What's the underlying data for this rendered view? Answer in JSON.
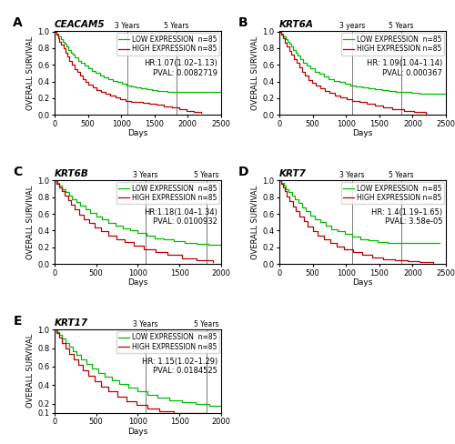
{
  "chart_data": [
    {
      "type": "step",
      "panel_label": "A",
      "title": "CEACAM5",
      "annotations": [
        "HR:1.07(1.02–1.13)",
        "PVAL: 0.0082719"
      ],
      "x_label": "Days",
      "y_label": "OVERALL SURVIVAL",
      "series": [
        {
          "name": "LOW EXPRESSION  n=85",
          "color": "#00bb00",
          "x": [
            0,
            30,
            60,
            90,
            120,
            150,
            180,
            210,
            240,
            270,
            300,
            350,
            400,
            450,
            500,
            560,
            620,
            680,
            740,
            800,
            870,
            940,
            1010,
            1080,
            1150,
            1220,
            1300,
            1380,
            1460,
            1540,
            1620,
            1700,
            1800,
            1900,
            2000,
            2100,
            2200,
            2300,
            2400,
            2500
          ],
          "values": [
            1.0,
            0.97,
            0.94,
            0.91,
            0.88,
            0.85,
            0.82,
            0.78,
            0.75,
            0.72,
            0.69,
            0.65,
            0.62,
            0.59,
            0.56,
            0.53,
            0.5,
            0.47,
            0.45,
            0.43,
            0.41,
            0.39,
            0.37,
            0.35,
            0.34,
            0.33,
            0.32,
            0.31,
            0.3,
            0.29,
            0.29,
            0.28,
            0.28,
            0.28,
            0.28,
            0.28,
            0.28,
            0.28,
            0.28,
            0.28
          ]
        },
        {
          "name": "HIGH EXPRESSION n=85",
          "color": "#bb0000",
          "x": [
            0,
            25,
            50,
            75,
            100,
            130,
            160,
            190,
            220,
            260,
            300,
            340,
            380,
            420,
            460,
            510,
            570,
            630,
            690,
            760,
            830,
            910,
            990,
            1070,
            1150,
            1230,
            1320,
            1420,
            1530,
            1640,
            1760,
            1870,
            1980,
            2090,
            2200
          ],
          "values": [
            1.0,
            0.96,
            0.92,
            0.88,
            0.84,
            0.8,
            0.75,
            0.7,
            0.65,
            0.6,
            0.55,
            0.51,
            0.47,
            0.43,
            0.39,
            0.36,
            0.33,
            0.3,
            0.27,
            0.25,
            0.23,
            0.21,
            0.19,
            0.17,
            0.16,
            0.15,
            0.14,
            0.13,
            0.12,
            0.1,
            0.09,
            0.07,
            0.05,
            0.03,
            0.02
          ]
        }
      ],
      "vlines": [
        {
          "x": 1095,
          "label": "3 Years",
          "color": "#777777"
        },
        {
          "x": 1825,
          "label": "5 Years",
          "color": "#777777"
        }
      ],
      "xlim": [
        0,
        2500
      ],
      "xticks": [
        0,
        500,
        1000,
        1500,
        2000,
        2500
      ],
      "ylim": [
        0,
        1.005
      ],
      "yticks": [
        {
          "value": 0,
          "label": "0.0"
        },
        0.2,
        0.4,
        0.6,
        0.8,
        1.0
      ],
      "legend": "upper right"
    },
    {
      "type": "step",
      "panel_label": "B",
      "title": "KRT6A",
      "annotations": [
        "HR: 1.09(1.04–1.14)",
        "PVAL: 0.000367"
      ],
      "x_label": "Days",
      "y_label": "OVERALL SURVIVAL",
      "series": [
        {
          "name": "LOW EXPRESSION  n=85",
          "color": "#00bb00",
          "x": [
            0,
            30,
            60,
            90,
            120,
            150,
            180,
            210,
            240,
            270,
            310,
            360,
            410,
            470,
            530,
            600,
            670,
            740,
            820,
            900,
            980,
            1060,
            1150,
            1240,
            1340,
            1440,
            1540,
            1640,
            1750,
            1860,
            1980,
            2100,
            2200,
            2300,
            2400,
            2500
          ],
          "values": [
            1.0,
            0.97,
            0.94,
            0.91,
            0.88,
            0.85,
            0.82,
            0.78,
            0.75,
            0.71,
            0.67,
            0.63,
            0.59,
            0.56,
            0.52,
            0.49,
            0.46,
            0.43,
            0.41,
            0.39,
            0.37,
            0.35,
            0.34,
            0.33,
            0.32,
            0.31,
            0.3,
            0.29,
            0.28,
            0.27,
            0.26,
            0.25,
            0.25,
            0.25,
            0.25,
            0.25
          ]
        },
        {
          "name": "HIGH EXPRESSION n=85",
          "color": "#bb0000",
          "x": [
            0,
            25,
            50,
            80,
            110,
            145,
            180,
            215,
            255,
            295,
            340,
            385,
            435,
            490,
            550,
            615,
            685,
            755,
            835,
            920,
            1005,
            1095,
            1200,
            1310,
            1430,
            1560,
            1700,
            1870,
            2020,
            2200
          ],
          "values": [
            1.0,
            0.96,
            0.92,
            0.87,
            0.82,
            0.77,
            0.72,
            0.67,
            0.62,
            0.57,
            0.52,
            0.47,
            0.42,
            0.38,
            0.35,
            0.32,
            0.29,
            0.26,
            0.23,
            0.21,
            0.19,
            0.17,
            0.15,
            0.13,
            0.11,
            0.09,
            0.07,
            0.05,
            0.03,
            0.01
          ]
        }
      ],
      "vlines": [
        {
          "x": 1095,
          "label": "3 years",
          "color": "#777777"
        },
        {
          "x": 1825,
          "label": "5 Years",
          "color": "#777777"
        }
      ],
      "xlim": [
        0,
        2500
      ],
      "xticks": [
        0,
        500,
        1000,
        1500,
        2000,
        2500
      ],
      "ylim": [
        0,
        1.005
      ],
      "yticks": [
        {
          "value": 0,
          "label": "0.0"
        },
        0.2,
        0.4,
        0.6,
        0.8,
        1.0
      ],
      "legend": "upper right"
    },
    {
      "type": "step",
      "panel_label": "C",
      "title": "KRT6B",
      "annotations": [
        "HR:1.18(1.04–1.34)",
        "PVAL: 0.0100932"
      ],
      "x_label": "Days",
      "y_label": "OVERALL SURVIVAL",
      "series": [
        {
          "name": "LOW EXPRESSION  n=85",
          "color": "#00bb00",
          "x": [
            0,
            30,
            60,
            90,
            130,
            170,
            210,
            260,
            310,
            370,
            430,
            500,
            570,
            650,
            730,
            820,
            910,
            1000,
            1100,
            1200,
            1310,
            1430,
            1560,
            1700,
            1850,
            2000
          ],
          "values": [
            1.0,
            0.97,
            0.94,
            0.9,
            0.86,
            0.82,
            0.78,
            0.74,
            0.7,
            0.65,
            0.61,
            0.57,
            0.53,
            0.49,
            0.46,
            0.43,
            0.4,
            0.37,
            0.34,
            0.31,
            0.29,
            0.27,
            0.25,
            0.24,
            0.23,
            0.23
          ]
        },
        {
          "name": "HIGH EXPRESSION n=85",
          "color": "#bb0000",
          "x": [
            0,
            25,
            55,
            85,
            120,
            160,
            200,
            245,
            295,
            350,
            410,
            480,
            560,
            645,
            740,
            840,
            950,
            1070,
            1210,
            1360,
            1530,
            1710,
            1900
          ],
          "values": [
            1.0,
            0.96,
            0.92,
            0.87,
            0.82,
            0.76,
            0.71,
            0.65,
            0.59,
            0.54,
            0.49,
            0.44,
            0.39,
            0.34,
            0.3,
            0.26,
            0.22,
            0.18,
            0.14,
            0.11,
            0.07,
            0.04,
            0.02
          ]
        }
      ],
      "vlines": [
        {
          "x": 1095,
          "label": "3 Years",
          "color": "#777777"
        },
        {
          "x": 1825,
          "label": "5 Years",
          "color": "#777777"
        }
      ],
      "xlim": [
        0,
        2000
      ],
      "xticks": [
        0,
        500,
        1000,
        1500,
        2000
      ],
      "ylim": [
        0,
        1.005
      ],
      "yticks": [
        {
          "value": 0,
          "label": "0.0"
        },
        0.2,
        0.4,
        0.6,
        0.8,
        1.0
      ],
      "legend": "upper right"
    },
    {
      "type": "step",
      "panel_label": "D",
      "title": "KRT7",
      "annotations": [
        "HR: 1.4(1.19–1.65)",
        "PVAL: 3.58e-05"
      ],
      "x_label": "Days",
      "y_label": "OVERALL SURVIVAL",
      "series": [
        {
          "name": "LOW EXPRESSION  n=85",
          "color": "#00bb00",
          "x": [
            0,
            30,
            65,
            100,
            140,
            185,
            230,
            280,
            335,
            395,
            460,
            530,
            610,
            695,
            785,
            880,
            980,
            1090,
            1210,
            1340,
            1480,
            1630,
            1800,
            1980,
            2180,
            2400
          ],
          "values": [
            1.0,
            0.97,
            0.94,
            0.9,
            0.86,
            0.82,
            0.78,
            0.73,
            0.68,
            0.63,
            0.58,
            0.54,
            0.5,
            0.46,
            0.42,
            0.39,
            0.36,
            0.33,
            0.3,
            0.28,
            0.26,
            0.25,
            0.25,
            0.25,
            0.25,
            0.25
          ]
        },
        {
          "name": "HIGH EXPRESSION n=85",
          "color": "#bb0000",
          "x": [
            0,
            25,
            50,
            80,
            115,
            155,
            200,
            250,
            305,
            365,
            430,
            500,
            580,
            665,
            760,
            860,
            975,
            1100,
            1240,
            1395,
            1560,
            1740,
            1920,
            2110,
            2310
          ],
          "values": [
            1.0,
            0.96,
            0.92,
            0.87,
            0.81,
            0.75,
            0.69,
            0.63,
            0.57,
            0.51,
            0.45,
            0.39,
            0.34,
            0.29,
            0.25,
            0.21,
            0.17,
            0.14,
            0.11,
            0.08,
            0.06,
            0.04,
            0.03,
            0.02,
            0.01
          ]
        }
      ],
      "vlines": [
        {
          "x": 1095,
          "label": "3 Years",
          "color": "#777777"
        },
        {
          "x": 1825,
          "label": "5 Years",
          "color": "#777777"
        }
      ],
      "xlim": [
        0,
        2500
      ],
      "xticks": [
        0,
        500,
        1000,
        1500,
        2000,
        2500
      ],
      "ylim": [
        0,
        1.005
      ],
      "yticks": [
        {
          "value": 0,
          "label": "0.0"
        },
        0.2,
        0.4,
        0.6,
        0.8,
        1.0
      ],
      "legend": "upper right"
    },
    {
      "type": "step",
      "panel_label": "E",
      "title": "KRT17",
      "annotations": [
        "HR: 1.15(1.02–1.29)",
        "PVAL: 0.0184525"
      ],
      "x_label": "Days",
      "y_label": "OVERALL SURVIVAL",
      "series": [
        {
          "name": "LOW EXPRESSION  n=85",
          "color": "#00bb00",
          "x": [
            0,
            30,
            60,
            90,
            130,
            170,
            215,
            265,
            320,
            380,
            445,
            520,
            600,
            685,
            780,
            880,
            990,
            1110,
            1240,
            1380,
            1530,
            1690,
            1860,
            2000
          ],
          "values": [
            1.0,
            0.97,
            0.94,
            0.9,
            0.86,
            0.82,
            0.77,
            0.73,
            0.68,
            0.63,
            0.58,
            0.53,
            0.49,
            0.45,
            0.41,
            0.37,
            0.33,
            0.3,
            0.27,
            0.24,
            0.22,
            0.2,
            0.18,
            0.17
          ]
        },
        {
          "name": "HIGH EXPRESSION n=85",
          "color": "#bb0000",
          "x": [
            0,
            25,
            55,
            90,
            130,
            175,
            225,
            280,
            340,
            405,
            480,
            560,
            650,
            750,
            860,
            980,
            1110,
            1260,
            1430,
            1620,
            1820
          ],
          "values": [
            1.0,
            0.96,
            0.91,
            0.86,
            0.8,
            0.74,
            0.68,
            0.62,
            0.56,
            0.5,
            0.44,
            0.38,
            0.33,
            0.28,
            0.23,
            0.19,
            0.15,
            0.12,
            0.1,
            0.1,
            0.1
          ]
        }
      ],
      "vlines": [
        {
          "x": 1095,
          "label": "3 Years",
          "color": "#777777"
        },
        {
          "x": 1825,
          "label": "5 Years",
          "color": "#777777"
        }
      ],
      "xlim": [
        0,
        2000
      ],
      "xticks": [
        0,
        500,
        1000,
        1500,
        2000
      ],
      "ylim": [
        0.1,
        1.005
      ],
      "yticks": [
        0.1,
        0.2,
        0.4,
        0.6,
        0.8,
        1.0
      ],
      "legend": "upper right"
    }
  ]
}
